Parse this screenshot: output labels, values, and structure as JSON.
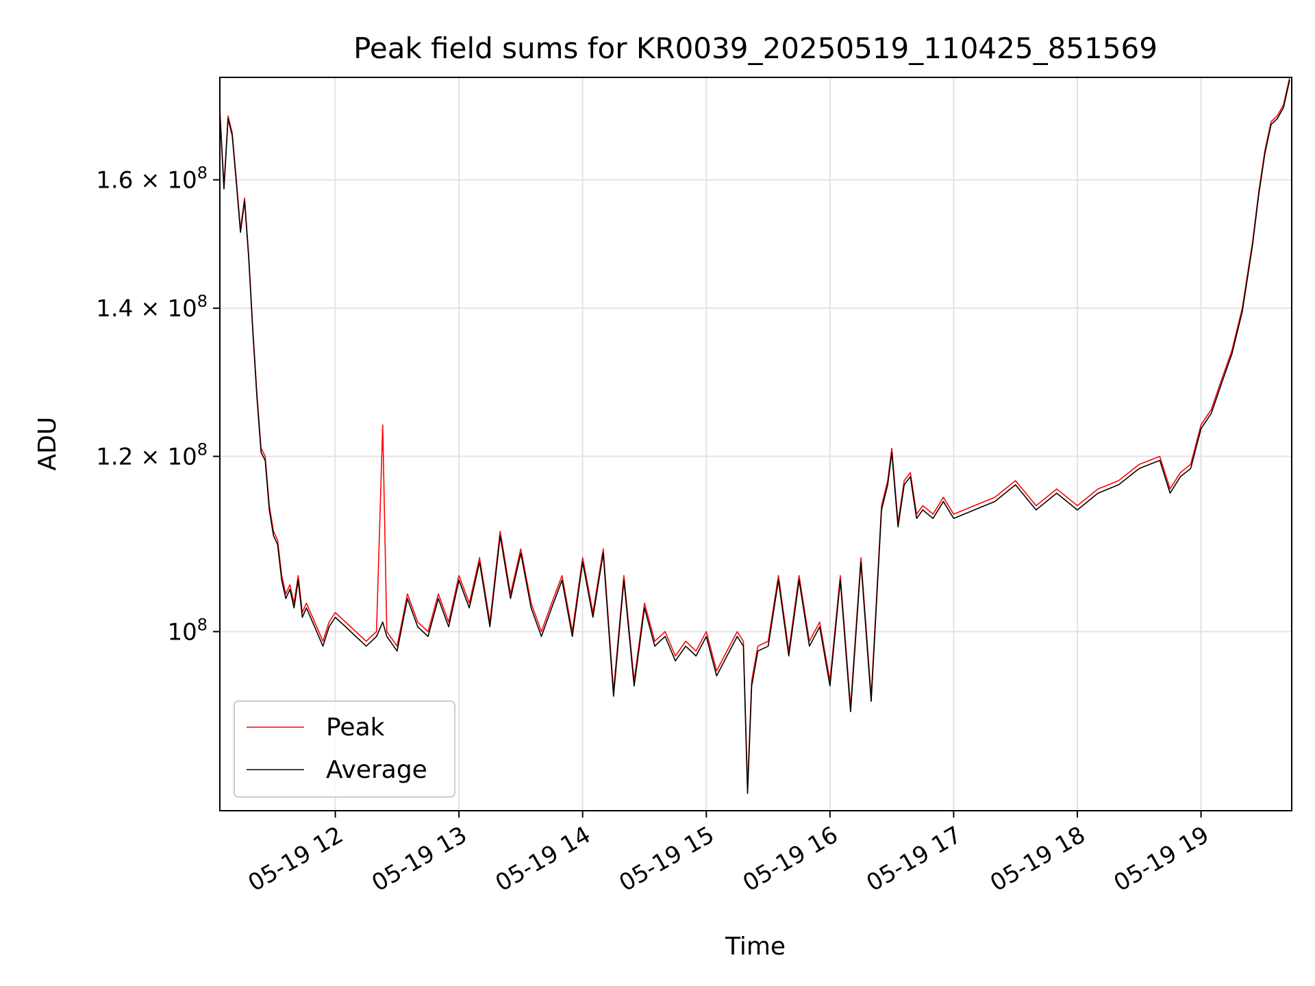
{
  "chart_data": {
    "type": "line",
    "title": "Peak field sums for KR0039_20250519_110425_851569",
    "xlabel": "Time",
    "ylabel": "ADU",
    "yscale": "log",
    "ylim": [
      83000000,
      178000000
    ],
    "xlim": [
      "2025-05-19 11:04",
      "2025-05-19 19:44"
    ],
    "x_ticks": [
      {
        "value": "2025-05-19 12:00",
        "label": "05-19 12"
      },
      {
        "value": "2025-05-19 13:00",
        "label": "05-19 13"
      },
      {
        "value": "2025-05-19 14:00",
        "label": "05-19 14"
      },
      {
        "value": "2025-05-19 15:00",
        "label": "05-19 15"
      },
      {
        "value": "2025-05-19 16:00",
        "label": "05-19 16"
      },
      {
        "value": "2025-05-19 17:00",
        "label": "05-19 17"
      },
      {
        "value": "2025-05-19 18:00",
        "label": "05-19 18"
      },
      {
        "value": "2025-05-19 19:00",
        "label": "05-19 19"
      }
    ],
    "y_ticks": [
      {
        "value": 100000000,
        "mantissa": "",
        "exponent": "8",
        "label": "10^8"
      },
      {
        "value": 120000000,
        "mantissa": "1.2",
        "exponent": "8",
        "label": "1.2×10^8"
      },
      {
        "value": 140000000,
        "mantissa": "1.4",
        "exponent": "8",
        "label": "1.4×10^8"
      },
      {
        "value": 160000000,
        "mantissa": "1.6",
        "exponent": "8",
        "label": "1.6×10^8"
      }
    ],
    "grid": true,
    "legend_position": "lower-left",
    "series": [
      {
        "name": "Peak",
        "color": "#ff0000",
        "x": [
          "2025-05-19 11:04",
          "2025-05-19 11:06",
          "2025-05-19 11:08",
          "2025-05-19 11:10",
          "2025-05-19 11:12",
          "2025-05-19 11:14",
          "2025-05-19 11:16",
          "2025-05-19 11:18",
          "2025-05-19 11:20",
          "2025-05-19 11:22",
          "2025-05-19 11:24",
          "2025-05-19 11:26",
          "2025-05-19 11:28",
          "2025-05-19 11:30",
          "2025-05-19 11:32",
          "2025-05-19 11:34",
          "2025-05-19 11:36",
          "2025-05-19 11:38",
          "2025-05-19 11:40",
          "2025-05-19 11:42",
          "2025-05-19 11:44",
          "2025-05-19 11:46",
          "2025-05-19 11:50",
          "2025-05-19 11:54",
          "2025-05-19 11:57",
          "2025-05-19 12:00",
          "2025-05-19 12:05",
          "2025-05-19 12:10",
          "2025-05-19 12:15",
          "2025-05-19 12:20",
          "2025-05-19 12:23",
          "2025-05-19 12:25",
          "2025-05-19 12:30",
          "2025-05-19 12:35",
          "2025-05-19 12:40",
          "2025-05-19 12:45",
          "2025-05-19 12:50",
          "2025-05-19 12:55",
          "2025-05-19 13:00",
          "2025-05-19 13:05",
          "2025-05-19 13:10",
          "2025-05-19 13:15",
          "2025-05-19 13:20",
          "2025-05-19 13:25",
          "2025-05-19 13:30",
          "2025-05-19 13:35",
          "2025-05-19 13:40",
          "2025-05-19 13:45",
          "2025-05-19 13:50",
          "2025-05-19 13:55",
          "2025-05-19 14:00",
          "2025-05-19 14:05",
          "2025-05-19 14:10",
          "2025-05-19 14:15",
          "2025-05-19 14:20",
          "2025-05-19 14:25",
          "2025-05-19 14:30",
          "2025-05-19 14:35",
          "2025-05-19 14:40",
          "2025-05-19 14:45",
          "2025-05-19 14:50",
          "2025-05-19 14:55",
          "2025-05-19 15:00",
          "2025-05-19 15:05",
          "2025-05-19 15:10",
          "2025-05-19 15:15",
          "2025-05-19 15:18",
          "2025-05-19 15:20",
          "2025-05-19 15:22",
          "2025-05-19 15:25",
          "2025-05-19 15:30",
          "2025-05-19 15:35",
          "2025-05-19 15:40",
          "2025-05-19 15:45",
          "2025-05-19 15:50",
          "2025-05-19 15:55",
          "2025-05-19 16:00",
          "2025-05-19 16:05",
          "2025-05-19 16:10",
          "2025-05-19 16:15",
          "2025-05-19 16:20",
          "2025-05-19 16:25",
          "2025-05-19 16:28",
          "2025-05-19 16:30",
          "2025-05-19 16:33",
          "2025-05-19 16:36",
          "2025-05-19 16:39",
          "2025-05-19 16:42",
          "2025-05-19 16:45",
          "2025-05-19 16:50",
          "2025-05-19 16:55",
          "2025-05-19 17:00",
          "2025-05-19 17:10",
          "2025-05-19 17:20",
          "2025-05-19 17:30",
          "2025-05-19 17:40",
          "2025-05-19 17:50",
          "2025-05-19 18:00",
          "2025-05-19 18:10",
          "2025-05-19 18:20",
          "2025-05-19 18:30",
          "2025-05-19 18:40",
          "2025-05-19 18:45",
          "2025-05-19 18:50",
          "2025-05-19 18:55",
          "2025-05-19 19:00",
          "2025-05-19 19:05",
          "2025-05-19 19:10",
          "2025-05-19 19:15",
          "2025-05-19 19:20",
          "2025-05-19 19:25",
          "2025-05-19 19:28",
          "2025-05-19 19:31",
          "2025-05-19 19:34",
          "2025-05-19 19:37",
          "2025-05-19 19:40",
          "2025-05-19 19:43"
        ],
        "values": [
          172000000,
          159000000,
          171000000,
          168000000,
          160000000,
          152000000,
          157000000,
          148000000,
          137000000,
          128000000,
          121000000,
          120000000,
          114000000,
          111000000,
          110000000,
          106000000,
          104000000,
          105000000,
          103000000,
          106000000,
          102000000,
          103000000,
          101000000,
          99000000,
          101000000,
          102000000,
          101000000,
          100000000,
          99000000,
          100000000,
          124000000,
          100000000,
          98500000,
          104000000,
          101000000,
          100000000,
          104000000,
          101000000,
          106000000,
          103000000,
          108000000,
          101000000,
          111000000,
          104000000,
          109000000,
          103000000,
          100000000,
          103000000,
          106000000,
          100000000,
          108000000,
          102000000,
          109000000,
          94000000,
          106000000,
          95000000,
          103000000,
          99000000,
          100000000,
          97500000,
          99000000,
          98000000,
          100000000,
          96000000,
          98000000,
          100000000,
          99000000,
          85000000,
          95000000,
          98500000,
          99000000,
          106000000,
          98000000,
          106000000,
          99000000,
          101000000,
          95000000,
          106000000,
          92500000,
          108000000,
          93500000,
          114000000,
          117000000,
          121000000,
          112000000,
          117000000,
          118000000,
          113000000,
          114000000,
          113000000,
          115000000,
          113000000,
          114000000,
          115000000,
          117000000,
          114000000,
          116000000,
          114000000,
          116000000,
          117000000,
          119000000,
          120000000,
          116000000,
          118000000,
          119000000,
          124000000,
          126000000,
          130000000,
          134000000,
          140000000,
          150000000,
          158000000,
          165000000,
          170000000,
          171000000,
          173000000,
          178000000
        ]
      },
      {
        "name": "Average",
        "color": "#000000",
        "x": [
          "2025-05-19 11:04",
          "2025-05-19 11:06",
          "2025-05-19 11:08",
          "2025-05-19 11:10",
          "2025-05-19 11:12",
          "2025-05-19 11:14",
          "2025-05-19 11:16",
          "2025-05-19 11:18",
          "2025-05-19 11:20",
          "2025-05-19 11:22",
          "2025-05-19 11:24",
          "2025-05-19 11:26",
          "2025-05-19 11:28",
          "2025-05-19 11:30",
          "2025-05-19 11:32",
          "2025-05-19 11:34",
          "2025-05-19 11:36",
          "2025-05-19 11:38",
          "2025-05-19 11:40",
          "2025-05-19 11:42",
          "2025-05-19 11:44",
          "2025-05-19 11:46",
          "2025-05-19 11:50",
          "2025-05-19 11:54",
          "2025-05-19 11:57",
          "2025-05-19 12:00",
          "2025-05-19 12:05",
          "2025-05-19 12:10",
          "2025-05-19 12:15",
          "2025-05-19 12:20",
          "2025-05-19 12:23",
          "2025-05-19 12:25",
          "2025-05-19 12:30",
          "2025-05-19 12:35",
          "2025-05-19 12:40",
          "2025-05-19 12:45",
          "2025-05-19 12:50",
          "2025-05-19 12:55",
          "2025-05-19 13:00",
          "2025-05-19 13:05",
          "2025-05-19 13:10",
          "2025-05-19 13:15",
          "2025-05-19 13:20",
          "2025-05-19 13:25",
          "2025-05-19 13:30",
          "2025-05-19 13:35",
          "2025-05-19 13:40",
          "2025-05-19 13:45",
          "2025-05-19 13:50",
          "2025-05-19 13:55",
          "2025-05-19 14:00",
          "2025-05-19 14:05",
          "2025-05-19 14:10",
          "2025-05-19 14:15",
          "2025-05-19 14:20",
          "2025-05-19 14:25",
          "2025-05-19 14:30",
          "2025-05-19 14:35",
          "2025-05-19 14:40",
          "2025-05-19 14:45",
          "2025-05-19 14:50",
          "2025-05-19 14:55",
          "2025-05-19 15:00",
          "2025-05-19 15:05",
          "2025-05-19 15:10",
          "2025-05-19 15:15",
          "2025-05-19 15:18",
          "2025-05-19 15:20",
          "2025-05-19 15:22",
          "2025-05-19 15:25",
          "2025-05-19 15:30",
          "2025-05-19 15:35",
          "2025-05-19 15:40",
          "2025-05-19 15:45",
          "2025-05-19 15:50",
          "2025-05-19 15:55",
          "2025-05-19 16:00",
          "2025-05-19 16:05",
          "2025-05-19 16:10",
          "2025-05-19 16:15",
          "2025-05-19 16:20",
          "2025-05-19 16:25",
          "2025-05-19 16:28",
          "2025-05-19 16:30",
          "2025-05-19 16:33",
          "2025-05-19 16:36",
          "2025-05-19 16:39",
          "2025-05-19 16:42",
          "2025-05-19 16:45",
          "2025-05-19 16:50",
          "2025-05-19 16:55",
          "2025-05-19 17:00",
          "2025-05-19 17:10",
          "2025-05-19 17:20",
          "2025-05-19 17:30",
          "2025-05-19 17:40",
          "2025-05-19 17:50",
          "2025-05-19 18:00",
          "2025-05-19 18:10",
          "2025-05-19 18:20",
          "2025-05-19 18:30",
          "2025-05-19 18:40",
          "2025-05-19 18:45",
          "2025-05-19 18:50",
          "2025-05-19 18:55",
          "2025-05-19 19:00",
          "2025-05-19 19:05",
          "2025-05-19 19:10",
          "2025-05-19 19:15",
          "2025-05-19 19:20",
          "2025-05-19 19:25",
          "2025-05-19 19:28",
          "2025-05-19 19:31",
          "2025-05-19 19:34",
          "2025-05-19 19:37",
          "2025-05-19 19:40",
          "2025-05-19 19:43"
        ],
        "values": [
          171500000,
          158500000,
          170500000,
          167500000,
          159500000,
          151500000,
          156500000,
          147500000,
          136500000,
          127500000,
          120500000,
          119500000,
          113500000,
          110500000,
          109500000,
          105500000,
          103500000,
          104500000,
          102500000,
          105500000,
          101500000,
          102500000,
          100500000,
          98500000,
          100500000,
          101500000,
          100500000,
          99500000,
          98500000,
          99500000,
          101000000,
          99500000,
          98000000,
          103500000,
          100500000,
          99500000,
          103500000,
          100500000,
          105500000,
          102500000,
          107500000,
          100500000,
          110500000,
          103500000,
          108500000,
          102500000,
          99500000,
          102500000,
          105500000,
          99500000,
          107500000,
          101500000,
          108500000,
          93500000,
          105500000,
          94500000,
          102500000,
          98500000,
          99500000,
          97000000,
          98500000,
          97500000,
          99500000,
          95500000,
          97500000,
          99500000,
          98500000,
          84500000,
          94500000,
          98000000,
          98500000,
          105500000,
          97500000,
          105500000,
          98500000,
          100500000,
          94500000,
          105500000,
          92000000,
          107500000,
          93000000,
          113500000,
          116500000,
          120500000,
          111500000,
          116500000,
          117500000,
          112500000,
          113500000,
          112500000,
          114500000,
          112500000,
          113500000,
          114500000,
          116500000,
          113500000,
          115500000,
          113500000,
          115500000,
          116500000,
          118500000,
          119500000,
          115500000,
          117500000,
          118500000,
          123500000,
          125500000,
          129500000,
          133500000,
          139500000,
          149500000,
          157500000,
          164500000,
          169500000,
          170500000,
          172500000,
          177500000
        ]
      }
    ]
  }
}
